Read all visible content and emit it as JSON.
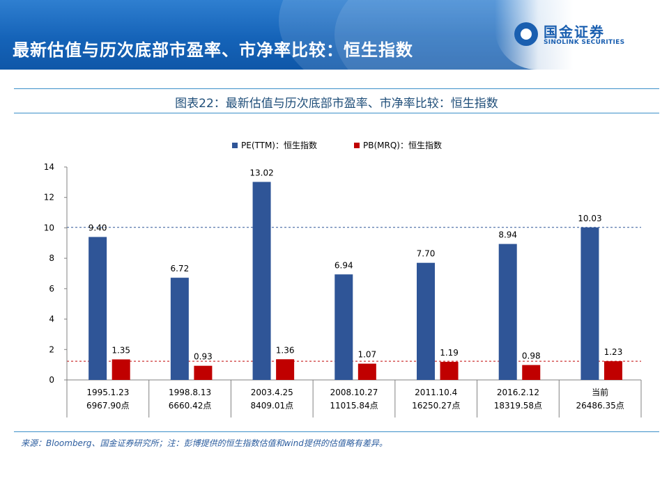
{
  "header": {
    "title": "最新估值与历次底部市盈率、市净率比较：恒生指数",
    "logo_cn": "国金证券",
    "logo_en": "SINOLINK SECURITIES"
  },
  "caption": "图表22：最新估值与历次底部市盈率、市净率比较：恒生指数",
  "source": "来源：Bloomberg、国金证券研究所；注：彭博提供的恒生指数估值和wind提供的估值略有差异。",
  "colors": {
    "pe": "#2f5597",
    "pb": "#c00000",
    "header": "#1563b8"
  },
  "chart_data": {
    "type": "bar",
    "categories": [
      "1995.1.23",
      "1998.8.13",
      "2003.4.25",
      "2008.10.27",
      "2011.10.4",
      "2016.2.12",
      "当前"
    ],
    "category_sublabels": [
      "6967.90点",
      "6660.42点",
      "8409.01点",
      "11015.84点",
      "16250.27点",
      "18319.58点",
      "26486.35点"
    ],
    "series": [
      {
        "name": "PE(TTM)：恒生指数",
        "values": [
          9.4,
          6.72,
          13.02,
          6.94,
          7.7,
          8.94,
          10.03
        ],
        "labels": [
          "9.40",
          "6.72",
          "13.02",
          "6.94",
          "7.70",
          "8.94",
          "10.03"
        ]
      },
      {
        "name": "PB(MRQ)：恒生指数",
        "values": [
          1.35,
          0.93,
          1.36,
          1.07,
          1.19,
          0.98,
          1.23
        ],
        "labels": [
          "1.35",
          "0.93",
          "1.36",
          "1.07",
          "1.19",
          "0.98",
          "1.23"
        ]
      }
    ],
    "reference_lines": [
      {
        "value": 10.03,
        "series": 0
      },
      {
        "value": 1.23,
        "series": 1
      }
    ],
    "ylim": [
      0,
      14
    ],
    "yticks": [
      "0",
      "2",
      "4",
      "6",
      "8",
      "10",
      "12",
      "14"
    ],
    "legend_position": "top-center",
    "grid": false
  }
}
